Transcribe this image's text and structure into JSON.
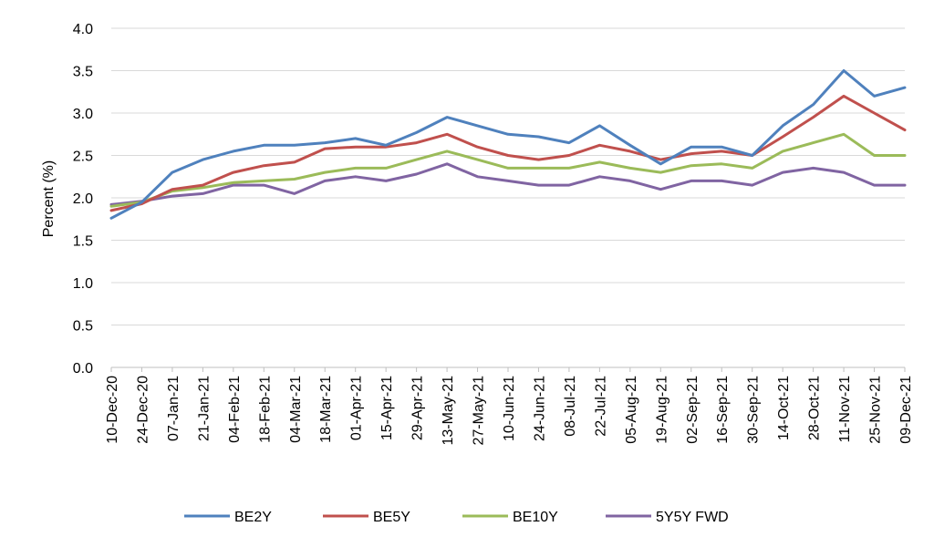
{
  "chart_data": {
    "type": "line",
    "title": "",
    "xlabel": "",
    "ylabel": "Percent (%)",
    "ylim": [
      0,
      4
    ],
    "yticks": [
      "0.0",
      "0.5",
      "1.0",
      "1.5",
      "2.0",
      "2.5",
      "3.0",
      "3.5",
      "4.0"
    ],
    "grid": "horizontal",
    "legend_position": "bottom",
    "x": [
      "10-Dec-20",
      "24-Dec-20",
      "07-Jan-21",
      "21-Jan-21",
      "04-Feb-21",
      "18-Feb-21",
      "04-Mar-21",
      "18-Mar-21",
      "01-Apr-21",
      "15-Apr-21",
      "29-Apr-21",
      "13-May-21",
      "27-May-21",
      "10-Jun-21",
      "24-Jun-21",
      "08-Jul-21",
      "22-Jul-21",
      "05-Aug-21",
      "19-Aug-21",
      "02-Sep-21",
      "16-Sep-21",
      "30-Sep-21",
      "14-Oct-21",
      "28-Oct-21",
      "11-Nov-21",
      "25-Nov-21",
      "09-Dec-21"
    ],
    "series": [
      {
        "name": "BE2Y",
        "color": "#4f81bd",
        "values": [
          1.76,
          1.95,
          2.3,
          2.45,
          2.55,
          2.62,
          2.62,
          2.65,
          2.7,
          2.62,
          2.77,
          2.95,
          2.85,
          2.75,
          2.72,
          2.65,
          2.85,
          2.62,
          2.4,
          2.6,
          2.6,
          2.5,
          2.85,
          3.1,
          3.5,
          3.2,
          3.3
        ]
      },
      {
        "name": "BE5Y",
        "color": "#c0504d",
        "values": [
          1.85,
          1.93,
          2.1,
          2.15,
          2.3,
          2.38,
          2.42,
          2.58,
          2.6,
          2.6,
          2.65,
          2.75,
          2.6,
          2.5,
          2.45,
          2.5,
          2.62,
          2.55,
          2.45,
          2.52,
          2.55,
          2.5,
          2.72,
          2.95,
          3.2,
          3.0,
          2.8
        ]
      },
      {
        "name": "BE10Y",
        "color": "#9bbb59",
        "values": [
          1.9,
          1.95,
          2.08,
          2.12,
          2.18,
          2.2,
          2.22,
          2.3,
          2.35,
          2.35,
          2.45,
          2.55,
          2.45,
          2.35,
          2.35,
          2.35,
          2.42,
          2.35,
          2.3,
          2.38,
          2.4,
          2.35,
          2.55,
          2.65,
          2.75,
          2.5,
          2.5
        ]
      },
      {
        "name": "5Y5Y FWD",
        "color": "#8064a2",
        "values": [
          1.92,
          1.96,
          2.02,
          2.05,
          2.15,
          2.15,
          2.05,
          2.2,
          2.25,
          2.2,
          2.28,
          2.4,
          2.25,
          2.2,
          2.15,
          2.15,
          2.25,
          2.2,
          2.1,
          2.2,
          2.2,
          2.15,
          2.3,
          2.35,
          2.3,
          2.15,
          2.15
        ]
      }
    ]
  }
}
